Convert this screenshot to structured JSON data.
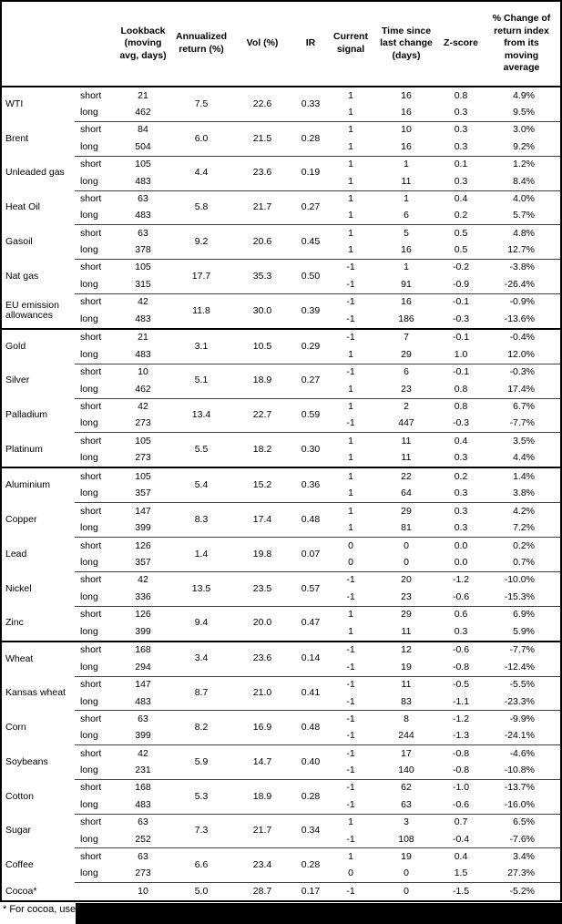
{
  "table": {
    "headers": [
      "",
      "",
      "Lookback\n(moving\navg, days)",
      "Annualized\nreturn (%)",
      "Vol (%)",
      "IR",
      "Current\nsignal",
      "Time since\nlast change\n(days)",
      "Z-score",
      "% Change of\nreturn index\nfrom its\nmoving\naverage"
    ],
    "sectors": [
      [
        {
          "name": "WTI",
          "annualized": "7.5",
          "vol": "22.6",
          "ir": "0.33",
          "rows": [
            {
              "pos": "short",
              "lookback": "21",
              "signal": "1",
              "time_since": "16",
              "z_score": "0.8",
              "pct_change": "4.9%"
            },
            {
              "pos": "long",
              "lookback": "462",
              "signal": "1",
              "time_since": "16",
              "z_score": "0.3",
              "pct_change": "9.5%"
            }
          ]
        },
        {
          "name": "Brent",
          "annualized": "6.0",
          "vol": "21.5",
          "ir": "0.28",
          "rows": [
            {
              "pos": "short",
              "lookback": "84",
              "signal": "1",
              "time_since": "10",
              "z_score": "0.3",
              "pct_change": "3.0%"
            },
            {
              "pos": "long",
              "lookback": "504",
              "signal": "1",
              "time_since": "16",
              "z_score": "0.3",
              "pct_change": "9.2%"
            }
          ]
        },
        {
          "name": "Unleaded gas",
          "annualized": "4.4",
          "vol": "23.6",
          "ir": "0.19",
          "rows": [
            {
              "pos": "short",
              "lookback": "105",
              "signal": "1",
              "time_since": "1",
              "z_score": "0.1",
              "pct_change": "1.2%"
            },
            {
              "pos": "long",
              "lookback": "483",
              "signal": "1",
              "time_since": "11",
              "z_score": "0.3",
              "pct_change": "8.4%"
            }
          ]
        },
        {
          "name": "Heat Oil",
          "annualized": "5.8",
          "vol": "21.7",
          "ir": "0.27",
          "rows": [
            {
              "pos": "short",
              "lookback": "63",
              "signal": "1",
              "time_since": "1",
              "z_score": "0.4",
              "pct_change": "4.0%"
            },
            {
              "pos": "long",
              "lookback": "483",
              "signal": "1",
              "time_since": "6",
              "z_score": "0.2",
              "pct_change": "5.7%"
            }
          ]
        },
        {
          "name": "Gasoil",
          "annualized": "9.2",
          "vol": "20.6",
          "ir": "0.45",
          "rows": [
            {
              "pos": "short",
              "lookback": "63",
              "signal": "1",
              "time_since": "5",
              "z_score": "0.5",
              "pct_change": "4.8%"
            },
            {
              "pos": "long",
              "lookback": "378",
              "signal": "1",
              "time_since": "16",
              "z_score": "0.5",
              "pct_change": "12.7%"
            }
          ]
        },
        {
          "name": "Nat gas",
          "annualized": "17.7",
          "vol": "35.3",
          "ir": "0.50",
          "rows": [
            {
              "pos": "short",
              "lookback": "105",
              "signal": "-1",
              "time_since": "1",
              "z_score": "-0.2",
              "pct_change": "-3.8%"
            },
            {
              "pos": "long",
              "lookback": "315",
              "signal": "-1",
              "time_since": "91",
              "z_score": "-0.9",
              "pct_change": "-26.4%"
            }
          ]
        },
        {
          "name": "EU emission allowances",
          "annualized": "11.8",
          "vol": "30.0",
          "ir": "0.39",
          "rows": [
            {
              "pos": "short",
              "lookback": "42",
              "signal": "-1",
              "time_since": "16",
              "z_score": "-0.1",
              "pct_change": "-0.9%"
            },
            {
              "pos": "long",
              "lookback": "483",
              "signal": "-1",
              "time_since": "186",
              "z_score": "-0.3",
              "pct_change": "-13.6%"
            }
          ]
        }
      ],
      [
        {
          "name": "Gold",
          "annualized": "3.1",
          "vol": "10.5",
          "ir": "0.29",
          "rows": [
            {
              "pos": "short",
              "lookback": "21",
              "signal": "-1",
              "time_since": "7",
              "z_score": "-0.1",
              "pct_change": "-0.4%"
            },
            {
              "pos": "long",
              "lookback": "483",
              "signal": "1",
              "time_since": "29",
              "z_score": "1.0",
              "pct_change": "12.0%"
            }
          ]
        },
        {
          "name": "Silver",
          "annualized": "5.1",
          "vol": "18.9",
          "ir": "0.27",
          "rows": [
            {
              "pos": "short",
              "lookback": "10",
              "signal": "-1",
              "time_since": "6",
              "z_score": "-0.1",
              "pct_change": "-0.3%"
            },
            {
              "pos": "long",
              "lookback": "462",
              "signal": "1",
              "time_since": "23",
              "z_score": "0.8",
              "pct_change": "17.4%"
            }
          ]
        },
        {
          "name": "Palladium",
          "annualized": "13.4",
          "vol": "22.7",
          "ir": "0.59",
          "rows": [
            {
              "pos": "short",
              "lookback": "42",
              "signal": "1",
              "time_since": "2",
              "z_score": "0.8",
              "pct_change": "6.7%"
            },
            {
              "pos": "long",
              "lookback": "273",
              "signal": "-1",
              "time_since": "447",
              "z_score": "-0.3",
              "pct_change": "-7.7%"
            }
          ]
        },
        {
          "name": "Platinum",
          "annualized": "5.5",
          "vol": "18.2",
          "ir": "0.30",
          "rows": [
            {
              "pos": "short",
              "lookback": "105",
              "signal": "1",
              "time_since": "11",
              "z_score": "0.4",
              "pct_change": "3.5%"
            },
            {
              "pos": "long",
              "lookback": "273",
              "signal": "1",
              "time_since": "11",
              "z_score": "0.3",
              "pct_change": "4.4%"
            }
          ]
        }
      ],
      [
        {
          "name": "Aluminium",
          "annualized": "5.4",
          "vol": "15.2",
          "ir": "0.36",
          "rows": [
            {
              "pos": "short",
              "lookback": "105",
              "signal": "1",
              "time_since": "22",
              "z_score": "0.2",
              "pct_change": "1.4%"
            },
            {
              "pos": "long",
              "lookback": "357",
              "signal": "1",
              "time_since": "64",
              "z_score": "0.3",
              "pct_change": "3.8%"
            }
          ]
        },
        {
          "name": "Copper",
          "annualized": "8.3",
          "vol": "17.4",
          "ir": "0.48",
          "rows": [
            {
              "pos": "short",
              "lookback": "147",
              "signal": "1",
              "time_since": "29",
              "z_score": "0.3",
              "pct_change": "4.2%"
            },
            {
              "pos": "long",
              "lookback": "399",
              "signal": "1",
              "time_since": "81",
              "z_score": "0.3",
              "pct_change": "7.2%"
            }
          ]
        },
        {
          "name": "Lead",
          "annualized": "1.4",
          "vol": "19.8",
          "ir": "0.07",
          "rows": [
            {
              "pos": "short",
              "lookback": "126",
              "signal": "0",
              "time_since": "0",
              "z_score": "0.0",
              "pct_change": "0.2%"
            },
            {
              "pos": "long",
              "lookback": "357",
              "signal": "0",
              "time_since": "0",
              "z_score": "0.0",
              "pct_change": "0.7%"
            }
          ]
        },
        {
          "name": "Nickel",
          "annualized": "13.5",
          "vol": "23.5",
          "ir": "0.57",
          "rows": [
            {
              "pos": "short",
              "lookback": "42",
              "signal": "-1",
              "time_since": "20",
              "z_score": "-1.2",
              "pct_change": "-10.0%"
            },
            {
              "pos": "long",
              "lookback": "336",
              "signal": "-1",
              "time_since": "23",
              "z_score": "-0.6",
              "pct_change": "-15.3%"
            }
          ]
        },
        {
          "name": "Zinc",
          "annualized": "9.4",
          "vol": "20.0",
          "ir": "0.47",
          "rows": [
            {
              "pos": "short",
              "lookback": "126",
              "signal": "1",
              "time_since": "29",
              "z_score": "0.6",
              "pct_change": "6.9%"
            },
            {
              "pos": "long",
              "lookback": "399",
              "signal": "1",
              "time_since": "11",
              "z_score": "0.3",
              "pct_change": "5.9%"
            }
          ]
        }
      ],
      [
        {
          "name": "Wheat",
          "annualized": "3.4",
          "vol": "23.6",
          "ir": "0.14",
          "rows": [
            {
              "pos": "short",
              "lookback": "168",
              "signal": "-1",
              "time_since": "12",
              "z_score": "-0.6",
              "pct_change": "-7.7%"
            },
            {
              "pos": "long",
              "lookback": "294",
              "signal": "-1",
              "time_since": "19",
              "z_score": "-0.8",
              "pct_change": "-12.4%"
            }
          ]
        },
        {
          "name": "Kansas wheat",
          "annualized": "8.7",
          "vol": "21.0",
          "ir": "0.41",
          "rows": [
            {
              "pos": "short",
              "lookback": "147",
              "signal": "-1",
              "time_since": "11",
              "z_score": "-0.5",
              "pct_change": "-5.5%"
            },
            {
              "pos": "long",
              "lookback": "483",
              "signal": "-1",
              "time_since": "83",
              "z_score": "-1.1",
              "pct_change": "-23.3%"
            }
          ]
        },
        {
          "name": "Corn",
          "annualized": "8.2",
          "vol": "16.9",
          "ir": "0.48",
          "rows": [
            {
              "pos": "short",
              "lookback": "63",
              "signal": "-1",
              "time_since": "8",
              "z_score": "-1.2",
              "pct_change": "-9.9%"
            },
            {
              "pos": "long",
              "lookback": "399",
              "signal": "-1",
              "time_since": "244",
              "z_score": "-1.3",
              "pct_change": "-24.1%"
            }
          ]
        },
        {
          "name": "Soybeans",
          "annualized": "5.9",
          "vol": "14.7",
          "ir": "0.40",
          "rows": [
            {
              "pos": "short",
              "lookback": "42",
              "signal": "-1",
              "time_since": "17",
              "z_score": "-0.8",
              "pct_change": "-4.6%"
            },
            {
              "pos": "long",
              "lookback": "231",
              "signal": "-1",
              "time_since": "140",
              "z_score": "-0.8",
              "pct_change": "-10.8%"
            }
          ]
        },
        {
          "name": "Cotton",
          "annualized": "5.3",
          "vol": "18.9",
          "ir": "0.28",
          "rows": [
            {
              "pos": "short",
              "lookback": "168",
              "signal": "-1",
              "time_since": "62",
              "z_score": "-1.0",
              "pct_change": "-13.7%"
            },
            {
              "pos": "long",
              "lookback": "483",
              "signal": "-1",
              "time_since": "63",
              "z_score": "-0.6",
              "pct_change": "-16.0%"
            }
          ]
        },
        {
          "name": "Sugar",
          "annualized": "7.3",
          "vol": "21.7",
          "ir": "0.34",
          "rows": [
            {
              "pos": "short",
              "lookback": "63",
              "signal": "1",
              "time_since": "3",
              "z_score": "0.7",
              "pct_change": "6.5%"
            },
            {
              "pos": "long",
              "lookback": "252",
              "signal": "-1",
              "time_since": "108",
              "z_score": "-0.4",
              "pct_change": "-7.6%"
            }
          ]
        },
        {
          "name": "Coffee",
          "annualized": "6.6",
          "vol": "23.4",
          "ir": "0.28",
          "rows": [
            {
              "pos": "short",
              "lookback": "63",
              "signal": "1",
              "time_since": "19",
              "z_score": "0.4",
              "pct_change": "3.4%"
            },
            {
              "pos": "long",
              "lookback": "273",
              "signal": "0",
              "time_since": "0",
              "z_score": "1.5",
              "pct_change": "27.3%"
            }
          ]
        },
        {
          "name": "Cocoa*",
          "annualized": "5.0",
          "vol": "28.7",
          "ir": "0.17",
          "rows": [
            {
              "pos": "",
              "lookback": "10",
              "signal": "-1",
              "time_since": "0",
              "z_score": "-1.5",
              "pct_change": "-5.2%"
            }
          ]
        }
      ]
    ]
  },
  "footnote": {
    "text": "* For cocoa, uses"
  }
}
